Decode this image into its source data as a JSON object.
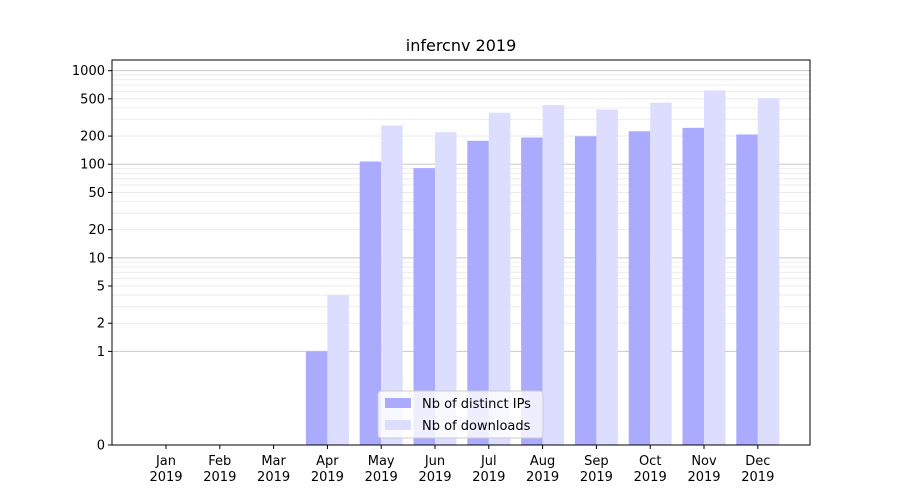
{
  "chart_data": {
    "type": "bar",
    "title": "infercnv 2019",
    "categories": [
      [
        "Jan",
        "2019"
      ],
      [
        "Feb",
        "2019"
      ],
      [
        "Mar",
        "2019"
      ],
      [
        "Apr",
        "2019"
      ],
      [
        "May",
        "2019"
      ],
      [
        "Jun",
        "2019"
      ],
      [
        "Jul",
        "2019"
      ],
      [
        "Aug",
        "2019"
      ],
      [
        "Sep",
        "2019"
      ],
      [
        "Oct",
        "2019"
      ],
      [
        "Nov",
        "2019"
      ],
      [
        "Dec",
        "2019"
      ]
    ],
    "series": [
      {
        "name": "Nb of distinct IPs",
        "color": "#aaaaff",
        "values": [
          0,
          0,
          0,
          1,
          107,
          91,
          178,
          193,
          199,
          225,
          245,
          208
        ]
      },
      {
        "name": "Nb of downloads",
        "color": "#ddddff",
        "values": [
          0,
          0,
          0,
          4,
          259,
          220,
          355,
          428,
          385,
          455,
          615,
          510
        ]
      }
    ],
    "yscale": "symlog",
    "yticks": [
      0,
      1,
      2,
      5,
      10,
      20,
      50,
      100,
      200,
      500,
      1000
    ],
    "ylim": [
      0,
      1300
    ],
    "grid": true,
    "legend_loc": "lower center"
  }
}
